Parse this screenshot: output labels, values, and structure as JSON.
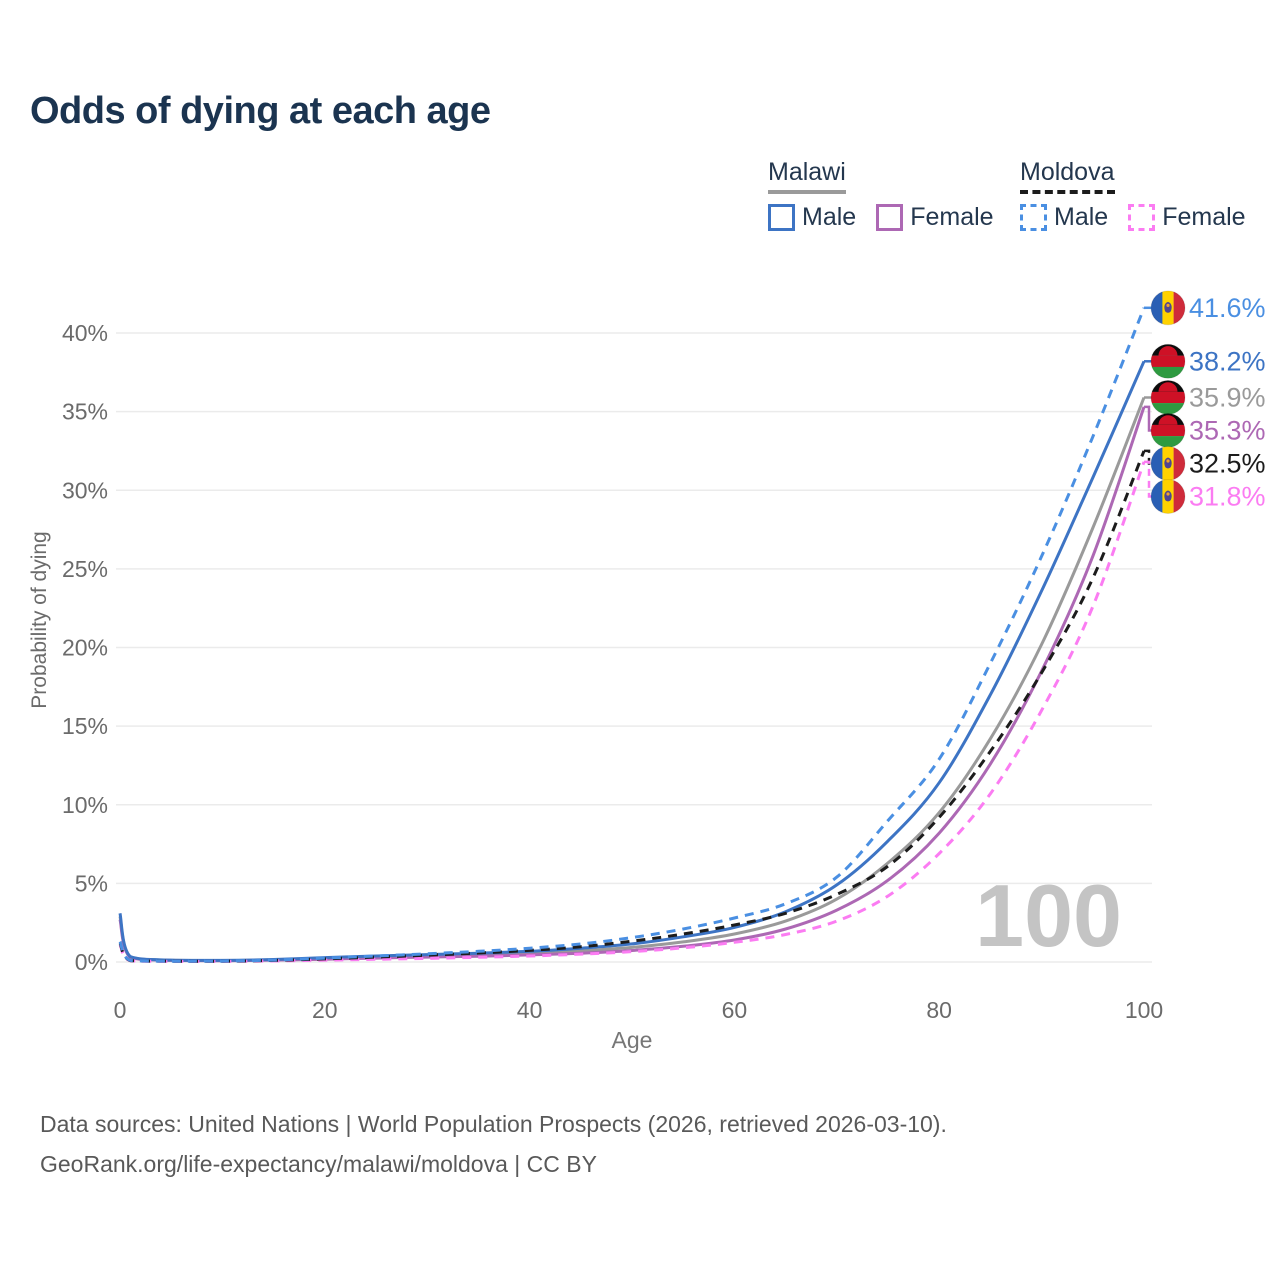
{
  "title": "Odds of dying at each age",
  "legend": {
    "groups": [
      {
        "name": "Malawi",
        "underline_color": "#9a9a9a",
        "underline_dashed": false,
        "items": [
          {
            "label": "Male",
            "color": "#3d74c4",
            "dashed": false
          },
          {
            "label": "Female",
            "color": "#ad68b4",
            "dashed": false
          }
        ]
      },
      {
        "name": "Moldova",
        "underline_color": "#1c1c1c",
        "underline_dashed": true,
        "items": [
          {
            "label": "Male",
            "color": "#4a8fe2",
            "dashed": true
          },
          {
            "label": "Female",
            "color": "#fb7cf2",
            "dashed": true
          }
        ]
      }
    ]
  },
  "chart_data": {
    "type": "line",
    "title": "Odds of dying at each age",
    "xlabel": "Age",
    "ylabel": "Probability of dying",
    "xlim": [
      0,
      100
    ],
    "ylim_percent": [
      0,
      42
    ],
    "x_ticks": [
      0,
      20,
      40,
      60,
      80,
      100
    ],
    "y_ticks_percent": [
      0,
      5,
      10,
      15,
      20,
      25,
      30,
      35,
      40
    ],
    "grid": true,
    "legend_position": "top-right",
    "watermark": "100",
    "ages": [
      0,
      1,
      5,
      10,
      15,
      20,
      25,
      30,
      35,
      40,
      45,
      50,
      55,
      60,
      65,
      70,
      75,
      80,
      85,
      90,
      95,
      100
    ],
    "series": [
      {
        "id": "malawi_both",
        "name": "Malawi - Both sexes",
        "country": "Malawi",
        "sex": "both",
        "color": "#9a9a9a",
        "dashed": false,
        "end_label": "35.9%",
        "values_percent": [
          2.9,
          0.33,
          0.11,
          0.09,
          0.14,
          0.23,
          0.31,
          0.39,
          0.46,
          0.56,
          0.71,
          0.93,
          1.28,
          1.78,
          2.6,
          4.0,
          6.3,
          9.5,
          14.2,
          20.2,
          27.6,
          35.9
        ]
      },
      {
        "id": "malawi_female",
        "name": "Malawi - Female",
        "country": "Malawi",
        "sex": "female",
        "color": "#ad68b4",
        "dashed": false,
        "end_label": "35.3%",
        "values_percent": [
          2.7,
          0.3,
          0.1,
          0.08,
          0.12,
          0.18,
          0.25,
          0.31,
          0.37,
          0.45,
          0.56,
          0.73,
          1.0,
          1.4,
          2.1,
          3.3,
          5.2,
          8.2,
          12.6,
          18.5,
          25.8,
          35.3
        ]
      },
      {
        "id": "malawi_male",
        "name": "Malawi - Male",
        "country": "Malawi",
        "sex": "male",
        "color": "#3d74c4",
        "dashed": false,
        "end_label": "38.2%",
        "values_percent": [
          3.1,
          0.35,
          0.12,
          0.1,
          0.16,
          0.28,
          0.38,
          0.47,
          0.56,
          0.68,
          0.88,
          1.15,
          1.6,
          2.2,
          3.2,
          4.9,
          7.7,
          11.4,
          17.0,
          23.6,
          30.8,
          38.2
        ]
      },
      {
        "id": "moldova_female",
        "name": "Moldova - Female",
        "country": "Moldova",
        "sex": "female",
        "color": "#fb7cf2",
        "dashed": true,
        "end_label": "31.8%",
        "values_percent": [
          1.1,
          0.08,
          0.04,
          0.04,
          0.07,
          0.12,
          0.17,
          0.23,
          0.3,
          0.38,
          0.5,
          0.66,
          0.9,
          1.25,
          1.75,
          2.6,
          4.2,
          6.9,
          10.7,
          16.0,
          22.6,
          31.8
        ]
      },
      {
        "id": "moldova_both",
        "name": "Moldova - Both sexes",
        "country": "Moldova",
        "sex": "both",
        "color": "#1c1c1c",
        "dashed": true,
        "end_label": "32.5%",
        "values_percent": [
          1.2,
          0.09,
          0.05,
          0.05,
          0.1,
          0.2,
          0.31,
          0.43,
          0.57,
          0.74,
          0.97,
          1.32,
          1.78,
          2.35,
          3.1,
          4.3,
          6.1,
          9.2,
          13.4,
          18.4,
          24.4,
          32.5
        ]
      },
      {
        "id": "moldova_male",
        "name": "Moldova - Male",
        "country": "Moldova",
        "sex": "male",
        "color": "#4a8fe2",
        "dashed": true,
        "end_label": "41.6%",
        "values_percent": [
          1.3,
          0.1,
          0.05,
          0.06,
          0.12,
          0.25,
          0.38,
          0.52,
          0.68,
          0.88,
          1.15,
          1.55,
          2.1,
          2.8,
          3.7,
          5.4,
          9.0,
          12.9,
          19.0,
          25.8,
          33.4,
          41.6
        ]
      }
    ]
  },
  "footer": {
    "line1": "Data sources: United Nations | World Population Prospects (2026, retrieved 2026-03-10).",
    "line2": "GeoRank.org/life-expectancy/malawi/moldova | CC BY"
  }
}
